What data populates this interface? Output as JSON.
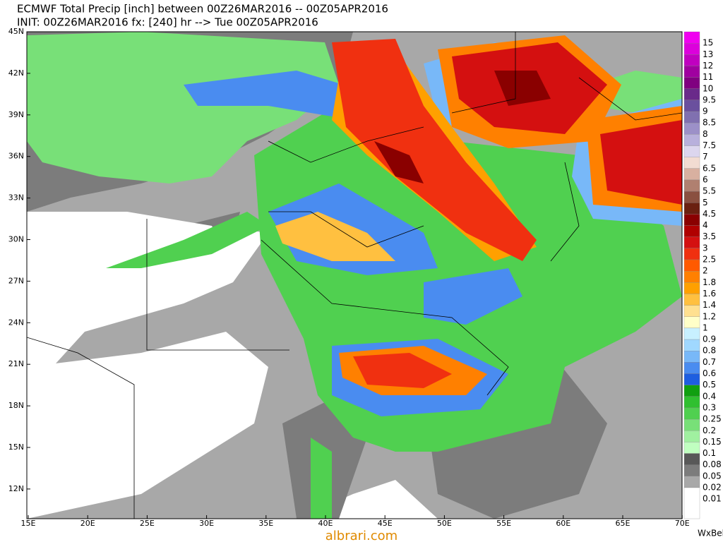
{
  "header": {
    "title": "ECMWF Total Precip [inch] between 00Z26MAR2016 -- 00Z05APR2016",
    "subtitle": "INIT: 00Z26MAR2016 fx: [240] hr --> Tue 00Z05APR2016"
  },
  "map": {
    "lat_labels": [
      "45N",
      "42N",
      "39N",
      "36N",
      "33N",
      "30N",
      "27N",
      "24N",
      "21N",
      "18N",
      "15N",
      "12N"
    ],
    "lon_labels": [
      "15E",
      "20E",
      "25E",
      "30E",
      "35E",
      "40E",
      "45E",
      "50E",
      "55E",
      "60E",
      "65E",
      "70E"
    ]
  },
  "colorbar": [
    {
      "label": "15",
      "color": "#f000f0"
    },
    {
      "label": "13",
      "color": "#dc00dc"
    },
    {
      "label": "12",
      "color": "#c000c0"
    },
    {
      "label": "11",
      "color": "#a000a0"
    },
    {
      "label": "10",
      "color": "#800080"
    },
    {
      "label": "9.5",
      "color": "#6a2a8a"
    },
    {
      "label": "9",
      "color": "#6a509e"
    },
    {
      "label": "8.5",
      "color": "#8070b0"
    },
    {
      "label": "8",
      "color": "#9c90c8"
    },
    {
      "label": "7.5",
      "color": "#b8b0dc"
    },
    {
      "label": "7",
      "color": "#dcd6ee"
    },
    {
      "label": "6.5",
      "color": "#f2dcd2"
    },
    {
      "label": "6",
      "color": "#d8b0a0"
    },
    {
      "label": "5.5",
      "color": "#b08070"
    },
    {
      "label": "5",
      "color": "#8a5040"
    },
    {
      "label": "4.5",
      "color": "#6a2010"
    },
    {
      "label": "4",
      "color": "#8a0000"
    },
    {
      "label": "3.5",
      "color": "#b00000"
    },
    {
      "label": "3",
      "color": "#d41010"
    },
    {
      "label": "2.5",
      "color": "#f03010"
    },
    {
      "label": "2",
      "color": "#ff5a00"
    },
    {
      "label": "1.8",
      "color": "#ff8000"
    },
    {
      "label": "1.6",
      "color": "#ffa000"
    },
    {
      "label": "1.4",
      "color": "#ffc040"
    },
    {
      "label": "1.2",
      "color": "#ffe090"
    },
    {
      "label": "1",
      "color": "#ffffc8"
    },
    {
      "label": "0.9",
      "color": "#c8f0ff"
    },
    {
      "label": "0.8",
      "color": "#a0d8ff"
    },
    {
      "label": "0.7",
      "color": "#78b8f8"
    },
    {
      "label": "0.6",
      "color": "#4a8cf0"
    },
    {
      "label": "0.5",
      "color": "#1e5ee0"
    },
    {
      "label": "0.4",
      "color": "#10a010"
    },
    {
      "label": "0.3",
      "color": "#30c030"
    },
    {
      "label": "0.25",
      "color": "#50d050"
    },
    {
      "label": "0.2",
      "color": "#78e078"
    },
    {
      "label": "0.15",
      "color": "#a0f0a0"
    },
    {
      "label": "0.1",
      "color": "#c0ffc0"
    },
    {
      "label": "0.08",
      "color": "#585858"
    },
    {
      "label": "0.05",
      "color": "#7c7c7c"
    },
    {
      "label": "0.02",
      "color": "#a8a8a8"
    },
    {
      "label": "0.01",
      "color": "#ffffff"
    }
  ],
  "footer": {
    "brand": "WxBell",
    "watermark": "albrari.com"
  }
}
